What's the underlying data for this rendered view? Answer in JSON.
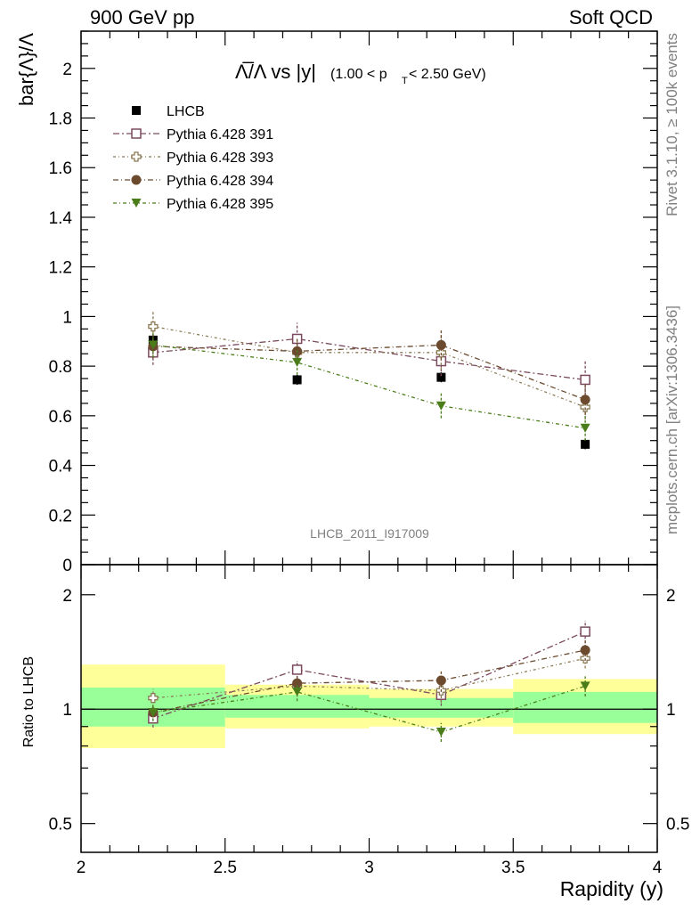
{
  "header": {
    "left_label": "900 GeV pp",
    "right_label": "Soft QCD"
  },
  "side_text": {
    "rivet": "Rivet 3.1.10, ≥ 100k events",
    "mcplots": "mcplots.cern.ch [arXiv:1306.3436]"
  },
  "watermark": "LHCB_2011_I917009",
  "title": {
    "main": "Λ̅/Λ vs |y|",
    "range": "(1.00 < p",
    "range_sub": "T",
    "range_end": " < 2.50 GeV)"
  },
  "chart_data": [
    {
      "type": "scatter",
      "panel": "main",
      "ylabel": "bar{Λ}/Λ",
      "ylim": [
        0,
        2.15
      ],
      "xlim": [
        2,
        4
      ],
      "yticks": [
        "0",
        "0.2",
        "0.4",
        "0.6",
        "0.8",
        "1",
        "1.2",
        "1.4",
        "1.6",
        "1.8",
        "2"
      ],
      "x": [
        2.25,
        2.75,
        3.25,
        3.75
      ],
      "legend_position": "top-left",
      "series": [
        {
          "name": "LHCB",
          "color": "#000000",
          "marker": "filled-square",
          "values": [
            0.905,
            0.745,
            0.755,
            0.485
          ],
          "errors": [
            0.02,
            0.02,
            0.02,
            0.02
          ]
        },
        {
          "name": "Pythia 6.428 391",
          "color": "#7b4a5e",
          "marker": "open-square",
          "values": [
            0.855,
            0.91,
            0.82,
            0.745
          ],
          "errors": [
            0.05,
            0.065,
            0.06,
            0.08
          ]
        },
        {
          "name": "Pythia 6.428 393",
          "color": "#8b7a55",
          "marker": "open-cross",
          "values": [
            0.96,
            0.855,
            0.855,
            0.635
          ],
          "errors": [
            0.06,
            0.05,
            0.07,
            0.05
          ]
        },
        {
          "name": "Pythia 6.428 394",
          "color": "#6b4a2e",
          "marker": "filled-circle",
          "values": [
            0.88,
            0.86,
            0.885,
            0.665
          ],
          "errors": [
            0.05,
            0.05,
            0.06,
            0.06
          ]
        },
        {
          "name": "Pythia 6.428 395",
          "color": "#4a7d1a",
          "marker": "filled-triangle-down",
          "values": [
            0.885,
            0.815,
            0.64,
            0.55
          ],
          "errors": [
            0.05,
            0.05,
            0.05,
            0.05
          ]
        }
      ]
    },
    {
      "type": "scatter",
      "panel": "ratio",
      "ylabel": "Ratio to LHCB",
      "xlabel": "Rapidity (y)",
      "yscale": "log",
      "ylim": [
        0.42,
        2.4
      ],
      "xlim": [
        2,
        4
      ],
      "yticks": [
        "0.5",
        "1",
        "2"
      ],
      "xticks": [
        "2",
        "2.5",
        "3",
        "3.5",
        "4"
      ],
      "bands": [
        {
          "x": [
            2.0,
            2.5
          ],
          "inner": [
            0.9,
            1.14
          ],
          "outer": [
            0.79,
            1.31
          ]
        },
        {
          "x": [
            2.5,
            3.0
          ],
          "inner": [
            0.95,
            1.09
          ],
          "outer": [
            0.89,
            1.16
          ]
        },
        {
          "x": [
            3.0,
            3.5
          ],
          "inner": [
            0.95,
            1.07
          ],
          "outer": [
            0.9,
            1.13
          ]
        },
        {
          "x": [
            3.5,
            4.0
          ],
          "inner": [
            0.92,
            1.11
          ],
          "outer": [
            0.86,
            1.2
          ]
        }
      ],
      "x": [
        2.25,
        2.75,
        3.25,
        3.75
      ],
      "series": [
        {
          "name": "Pythia 6.428 391",
          "values": [
            0.945,
            1.27,
            1.09,
            1.6
          ],
          "errors": [
            0.05,
            0.07,
            0.07,
            0.11
          ]
        },
        {
          "name": "Pythia 6.428 393",
          "values": [
            1.07,
            1.15,
            1.12,
            1.36
          ],
          "errors": [
            0.06,
            0.06,
            0.08,
            0.08
          ]
        },
        {
          "name": "Pythia 6.428 394",
          "values": [
            0.98,
            1.17,
            1.19,
            1.43
          ],
          "errors": [
            0.05,
            0.06,
            0.08,
            0.09
          ]
        },
        {
          "name": "Pythia 6.428 395",
          "values": [
            0.98,
            1.11,
            0.87,
            1.15
          ],
          "errors": [
            0.05,
            0.06,
            0.05,
            0.07
          ]
        }
      ]
    }
  ]
}
